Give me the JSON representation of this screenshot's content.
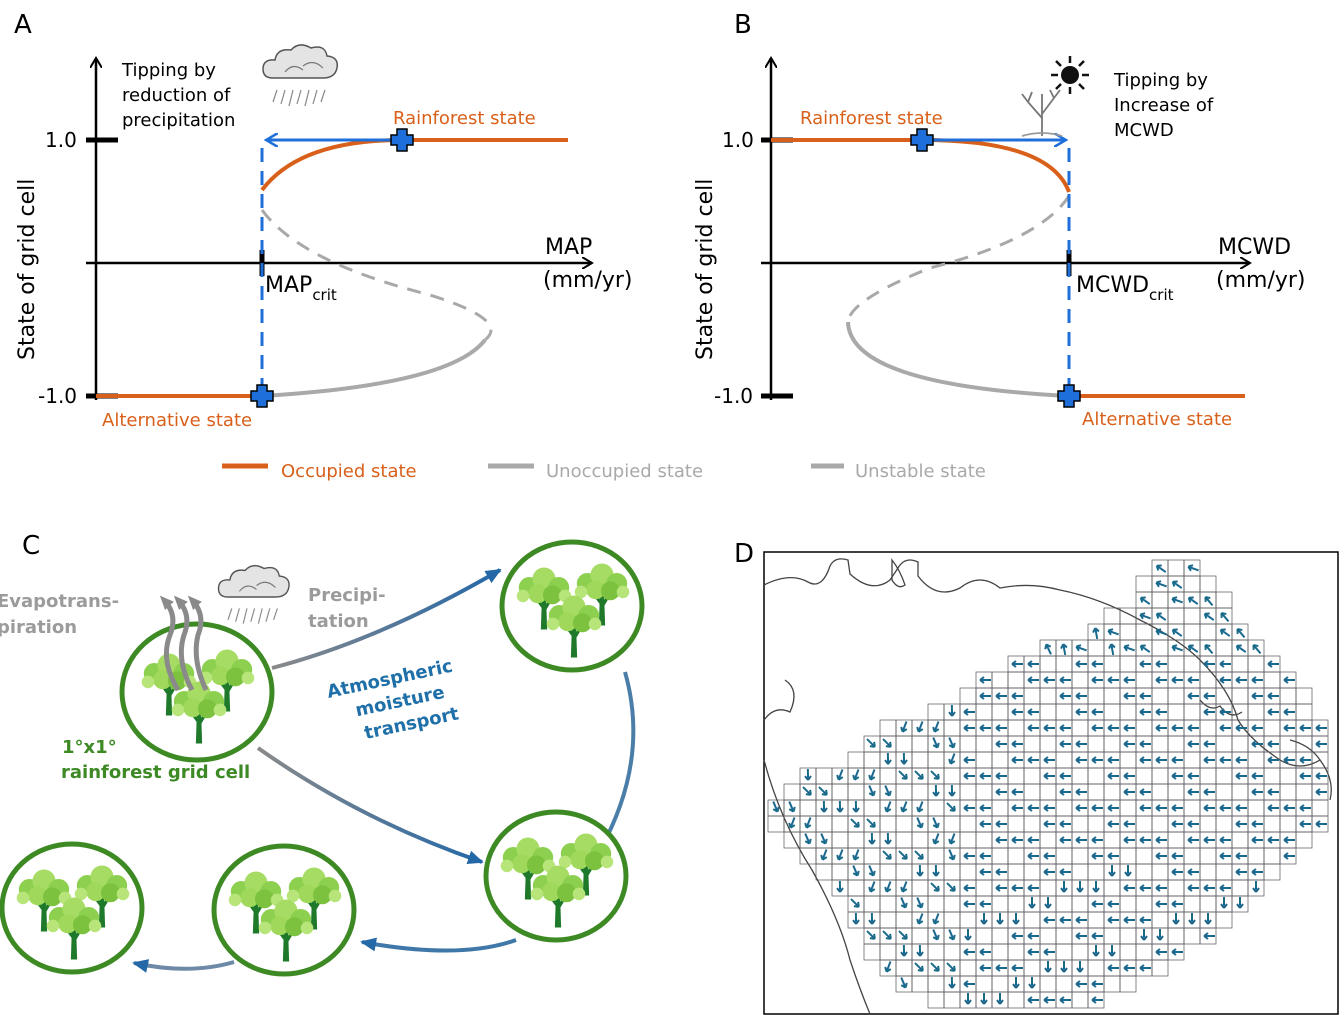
{
  "panels": {
    "a": "A",
    "b": "B",
    "c": "C",
    "d": "D"
  },
  "panel_a": {
    "ylabel": "State of grid cell",
    "xlabel_line1": "MAP",
    "xlabel_line2": "(mm/yr)",
    "tick_top": "1.0",
    "tick_bottom": "-1.0",
    "crit_main": "MAP",
    "crit_sub": "crit",
    "note": [
      "Tipping by",
      "reduction of",
      "precipitation"
    ],
    "upper_state": "Rainforest state",
    "lower_state": "Alternative state"
  },
  "panel_b": {
    "ylabel": "State of grid cell",
    "xlabel_line1": "MCWD",
    "xlabel_line2": "(mm/yr)",
    "tick_top": "1.0",
    "tick_bottom": "-1.0",
    "crit_main": "MCWD",
    "crit_sub": "crit",
    "note": [
      "Tipping by",
      "Increase of",
      "MCWD"
    ],
    "upper_state": "Rainforest state",
    "lower_state": "Alternative state"
  },
  "legend": {
    "items": [
      {
        "label": "Occupied state",
        "color": "#d9601a",
        "style": "solid"
      },
      {
        "label": "Unoccupied state",
        "color": "#a9a9a9",
        "style": "solid"
      },
      {
        "label": "Unstable state",
        "color": "#a9a9a9",
        "style": "dashed"
      }
    ]
  },
  "panel_c": {
    "evapo": [
      "Evapotrans-",
      "piration"
    ],
    "precip": [
      "Precipi-",
      "tation"
    ],
    "transport": [
      "Atmospheric",
      "moisture",
      "transport"
    ],
    "cell": [
      "1°x1°",
      "rainforest grid cell"
    ]
  },
  "colors": {
    "orange": "#d9601a",
    "blue": "#1f6fdb",
    "grey": "#a9a9a9",
    "green_ring": "#3d8a24",
    "arrow_teal": "#1a6a8e"
  }
}
